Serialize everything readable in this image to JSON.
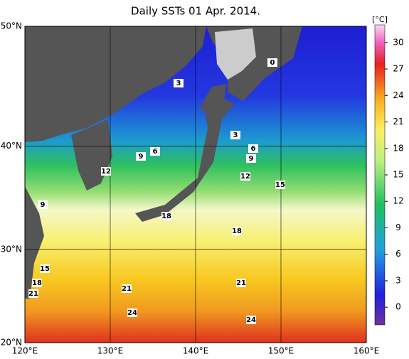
{
  "title": "Daily SSTs 01 Apr. 2014.",
  "map": {
    "xlim": [
      120,
      160
    ],
    "ylim": [
      20,
      50
    ],
    "xticks": [
      {
        "value": 120,
        "label": "120°E"
      },
      {
        "value": 130,
        "label": "130°E"
      },
      {
        "value": 140,
        "label": "140°E"
      },
      {
        "value": 150,
        "label": "150°E"
      },
      {
        "value": 160,
        "label": "160°E"
      }
    ],
    "yticks": [
      {
        "value": 20,
        "label": "20°N"
      },
      {
        "value": 30,
        "label": "30°N"
      },
      {
        "value": 40,
        "label": "40°N"
      },
      {
        "value": 50,
        "label": "50°N"
      }
    ],
    "contour_labels": [
      0,
      3,
      3,
      6,
      6,
      9,
      9,
      12,
      12,
      15,
      9,
      18,
      18,
      15,
      21,
      18,
      21,
      21,
      24,
      24
    ]
  },
  "colorbar": {
    "unit": "[°C]",
    "lim": [
      -2,
      32
    ],
    "ticks": [
      0,
      3,
      6,
      9,
      12,
      15,
      18,
      21,
      24,
      27,
      30
    ]
  }
}
